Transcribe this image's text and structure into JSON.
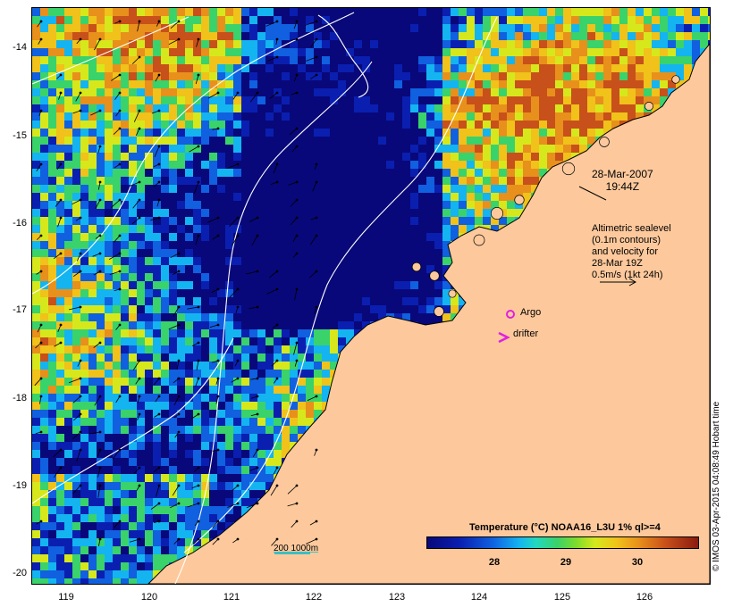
{
  "map": {
    "y_labels": [
      "-14",
      "-15",
      "-16",
      "-17",
      "-18",
      "-19",
      "-20"
    ],
    "x_labels": [
      "119",
      "120",
      "121",
      "122",
      "123",
      "124",
      "125",
      "126"
    ],
    "land_color": "#fdc99c",
    "ocean_palette": [
      "#08087a",
      "#0a1fb0",
      "#1060e0",
      "#14b4f0",
      "#3ad26a",
      "#d6e81c",
      "#f0c21a",
      "#e8901c",
      "#c8501a"
    ]
  },
  "overlay": {
    "date": "28-Mar-2007",
    "time": "19:44Z",
    "altimetry_lines": [
      "Altimetric sealevel",
      "(0.1m contours)",
      "and velocity for",
      "28-Mar 19Z",
      "0.5m/s (1kt 24h)"
    ],
    "argo_label": "Argo",
    "drifter_label": "drifter",
    "isobath_label": "200  1000m",
    "argo_color": "#e020e0",
    "isobath_color": "#3cbfc0"
  },
  "colorbar": {
    "title": "Temperature (°C) NOAA16_L3U 1% ql>=4",
    "ticks": [
      "28",
      "29",
      "30"
    ]
  },
  "credit": "© IMOS 03-Apr-2015 04:08:49 Hobart time"
}
